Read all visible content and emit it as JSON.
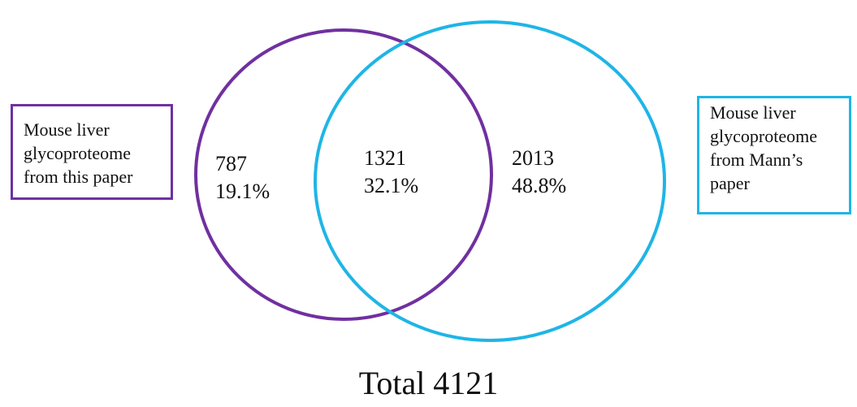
{
  "sets": {
    "left": {
      "label_lines": [
        "Mouse liver",
        "glycoproteome",
        "from this paper"
      ],
      "color": "#7030a0"
    },
    "right": {
      "label_lines": [
        "Mouse liver",
        "glycoproteome",
        "from Mann’s",
        "paper"
      ],
      "color": "#1fb5e6"
    }
  },
  "regions": {
    "left_only": {
      "count": "787",
      "percent": "19.1%"
    },
    "overlap": {
      "count": "1321",
      "percent": "32.1%"
    },
    "right_only": {
      "count": "2013",
      "percent": "48.8%"
    }
  },
  "total": "Total 4121"
}
